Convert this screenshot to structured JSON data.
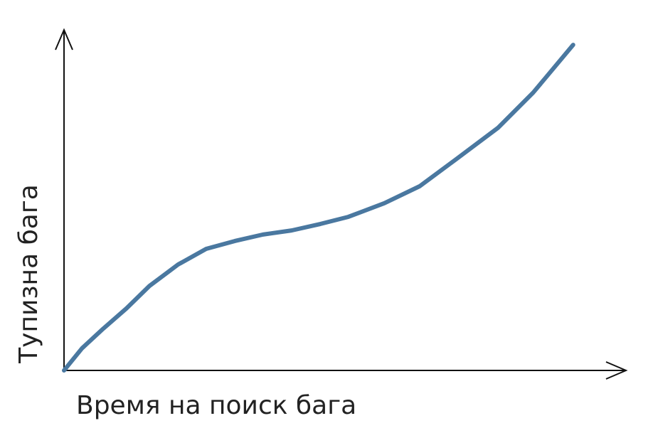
{
  "chart_data": {
    "type": "line",
    "x_label": "Время на поиск бага",
    "y_label": "Тупизна бага",
    "x": [
      0,
      3.2,
      7.0,
      11.1,
      15.2,
      20.3,
      25.3,
      30.4,
      35.4,
      40.5,
      45.6,
      50.6,
      57.0,
      63.3,
      69.6,
      77.2,
      83.5,
      90.6
    ],
    "values": [
      0,
      6.5,
      12.3,
      18.2,
      24.8,
      31.1,
      35.7,
      38.0,
      39.9,
      41.1,
      43.0,
      45.1,
      49.1,
      54.1,
      61.8,
      71.2,
      81.6,
      95.6
    ],
    "color": "#4a78a0",
    "xlim": [
      0,
      100
    ],
    "ylim": [
      0,
      100
    ]
  }
}
